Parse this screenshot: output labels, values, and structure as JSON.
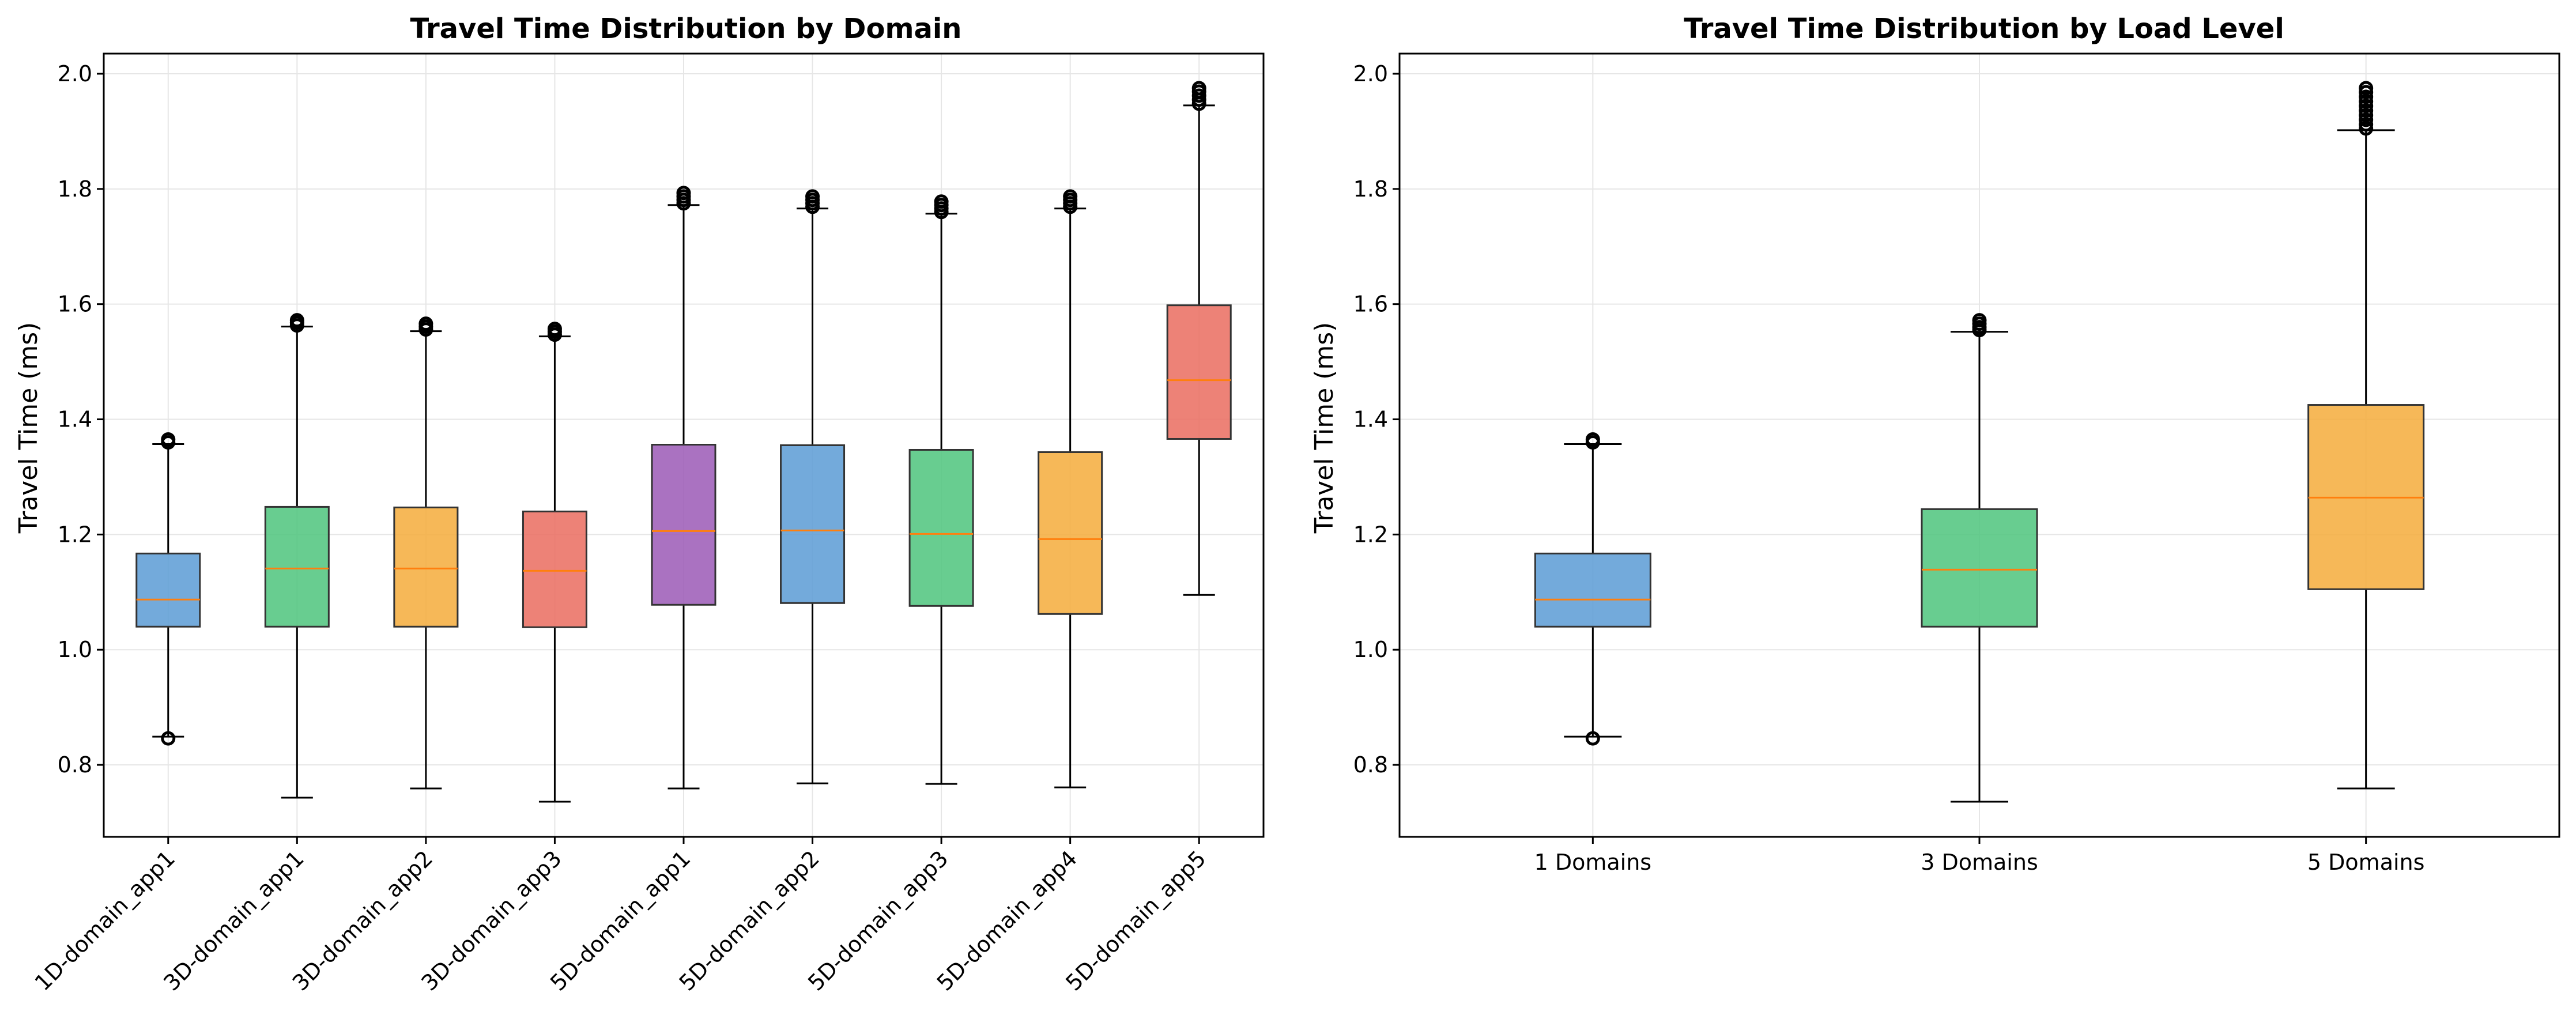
{
  "chart_data": [
    {
      "type": "box",
      "title": "Travel Time Distribution by Domain",
      "xlabel": "",
      "ylabel": "Travel Time (ms)",
      "ylim": [
        0.675,
        2.035
      ],
      "yticks": [
        0.8,
        1.0,
        1.2,
        1.4,
        1.6,
        1.8,
        2.0
      ],
      "ytick_labels": [
        "0.8",
        "1.0",
        "1.2",
        "1.4",
        "1.6",
        "1.8",
        "2.0"
      ],
      "grid": true,
      "x_label_rotation": 45,
      "categories": [
        "1D-domain_app1",
        "3D-domain_app1",
        "3D-domain_app2",
        "3D-domain_app3",
        "5D-domain_app1",
        "5D-domain_app2",
        "5D-domain_app3",
        "5D-domain_app4",
        "5D-domain_app5"
      ],
      "boxes": [
        {
          "whisker_low": 0.849,
          "q1": 1.04,
          "median": 1.087,
          "q3": 1.167,
          "whisker_high": 1.357,
          "outliers": [
            0.846,
            1.36,
            1.365
          ],
          "color": "#5b9bd5"
        },
        {
          "whisker_low": 0.743,
          "q1": 1.04,
          "median": 1.141,
          "q3": 1.248,
          "whisker_high": 1.561,
          "outliers": [
            1.563,
            1.568,
            1.572
          ],
          "color": "#4dc47d"
        },
        {
          "whisker_low": 0.759,
          "q1": 1.04,
          "median": 1.141,
          "q3": 1.247,
          "whisker_high": 1.553,
          "outliers": [
            1.556,
            1.561,
            1.566
          ],
          "color": "#f5ab3b"
        },
        {
          "whisker_low": 0.736,
          "q1": 1.039,
          "median": 1.137,
          "q3": 1.24,
          "whisker_high": 1.544,
          "outliers": [
            1.547,
            1.552,
            1.557
          ],
          "color": "#ea6c5f"
        },
        {
          "whisker_low": 0.759,
          "q1": 1.078,
          "median": 1.206,
          "q3": 1.356,
          "whisker_high": 1.772,
          "outliers": [
            1.775,
            1.781,
            1.787,
            1.793
          ],
          "color": "#9b59b6"
        },
        {
          "whisker_low": 0.768,
          "q1": 1.081,
          "median": 1.207,
          "q3": 1.355,
          "whisker_high": 1.766,
          "outliers": [
            1.769,
            1.775,
            1.781,
            1.787
          ],
          "color": "#5b9bd5"
        },
        {
          "whisker_low": 0.767,
          "q1": 1.076,
          "median": 1.201,
          "q3": 1.347,
          "whisker_high": 1.757,
          "outliers": [
            1.76,
            1.766,
            1.772,
            1.778
          ],
          "color": "#4dc47d"
        },
        {
          "whisker_low": 0.761,
          "q1": 1.062,
          "median": 1.192,
          "q3": 1.343,
          "whisker_high": 1.766,
          "outliers": [
            1.769,
            1.775,
            1.781,
            1.787
          ],
          "color": "#f5ab3b"
        },
        {
          "whisker_low": 1.095,
          "q1": 1.366,
          "median": 1.468,
          "q3": 1.598,
          "whisker_high": 1.945,
          "outliers": [
            1.948,
            1.955,
            1.962,
            1.969,
            1.975
          ],
          "color": "#ea6c5f"
        }
      ]
    },
    {
      "type": "box",
      "title": "Travel Time Distribution by Load Level",
      "xlabel": "",
      "ylabel": "Travel Time (ms)",
      "ylim": [
        0.675,
        2.035
      ],
      "yticks": [
        0.8,
        1.0,
        1.2,
        1.4,
        1.6,
        1.8,
        2.0
      ],
      "ytick_labels": [
        "0.8",
        "1.0",
        "1.2",
        "1.4",
        "1.6",
        "1.8",
        "2.0"
      ],
      "grid": true,
      "x_label_rotation": 0,
      "categories": [
        "1 Domains",
        "3 Domains",
        "5 Domains"
      ],
      "boxes": [
        {
          "whisker_low": 0.849,
          "q1": 1.04,
          "median": 1.087,
          "q3": 1.167,
          "whisker_high": 1.357,
          "outliers": [
            0.846,
            1.36,
            1.365
          ],
          "color": "#5b9bd5"
        },
        {
          "whisker_low": 0.736,
          "q1": 1.04,
          "median": 1.139,
          "q3": 1.244,
          "whisker_high": 1.552,
          "outliers": [
            1.555,
            1.56,
            1.566,
            1.572
          ],
          "color": "#4dc47d"
        },
        {
          "whisker_low": 0.759,
          "q1": 1.105,
          "median": 1.264,
          "q3": 1.425,
          "whisker_high": 1.902,
          "outliers": [
            1.905,
            1.912,
            1.92,
            1.928,
            1.936,
            1.944,
            1.952,
            1.96,
            1.968,
            1.975
          ],
          "color": "#f5ab3b"
        }
      ]
    }
  ],
  "style": {
    "median_color": "#ff7f0e",
    "box_edge_color": "#333333",
    "grid_color": "#e6e6e6",
    "box_opacity": 0.85
  }
}
